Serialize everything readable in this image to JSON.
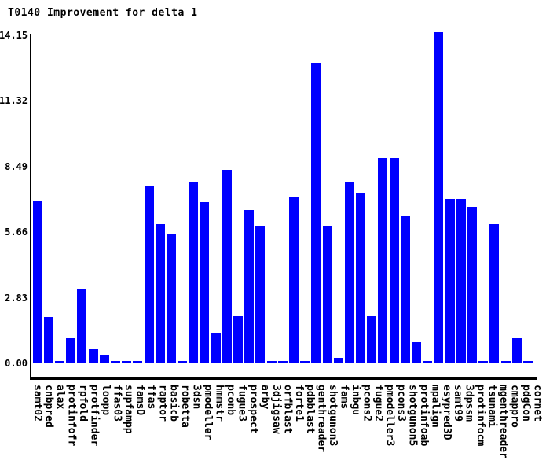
{
  "chart_data": {
    "type": "bar",
    "title": "T0140 Improvement for delta 1",
    "categories": [
      "samt02",
      "cnbpred",
      "alax",
      "protinfofr",
      "rpfold",
      "protfinder",
      "loopp",
      "ffas03",
      "supfampp",
      "famsD",
      "ffas",
      "raptor",
      "basicb",
      "robetta",
      "3dsn",
      "pmodeller",
      "hmmstr",
      "pconb",
      "fugue3",
      "prospect",
      "arby",
      "3djigsaw",
      "orfblast",
      "forte1",
      "pdbblast",
      "genthreader",
      "shotgunon3",
      "fams",
      "inbgu",
      "pcons2",
      "fugue2",
      "pmodeller3",
      "pcons3",
      "shotgunon5",
      "protinfoab",
      "mpalign",
      "esypred3D",
      "samt99",
      "3dpssm",
      "protinfocm",
      "tsunami",
      "mgenthreader",
      "cmappro",
      "pdgCon",
      "cornet"
    ],
    "values": [
      7.0,
      2.0,
      0.1,
      1.1,
      3.2,
      0.6,
      0.35,
      0.1,
      0.1,
      0.1,
      7.65,
      6.0,
      5.55,
      0.1,
      7.8,
      6.95,
      1.3,
      8.35,
      2.05,
      6.6,
      5.95,
      0.1,
      0.1,
      7.2,
      0.1,
      12.95,
      5.9,
      0.25,
      7.8,
      7.35,
      2.05,
      8.85,
      8.85,
      6.35,
      0.9,
      0.1,
      14.3,
      7.1,
      7.1,
      6.75,
      0.1,
      6.0,
      0.1,
      1.1,
      0.1
    ],
    "y_ticks": [
      "0.00",
      "2.83",
      "5.66",
      "8.49",
      "11.32",
      "14.15"
    ],
    "ylim": [
      0,
      14.15
    ],
    "xlabel": "",
    "ylabel": "",
    "grid": "off",
    "legend": "none",
    "bar_color": "#0000ff",
    "axis_color": "#000000",
    "background": "#ffffff",
    "text_color": "#000000"
  }
}
